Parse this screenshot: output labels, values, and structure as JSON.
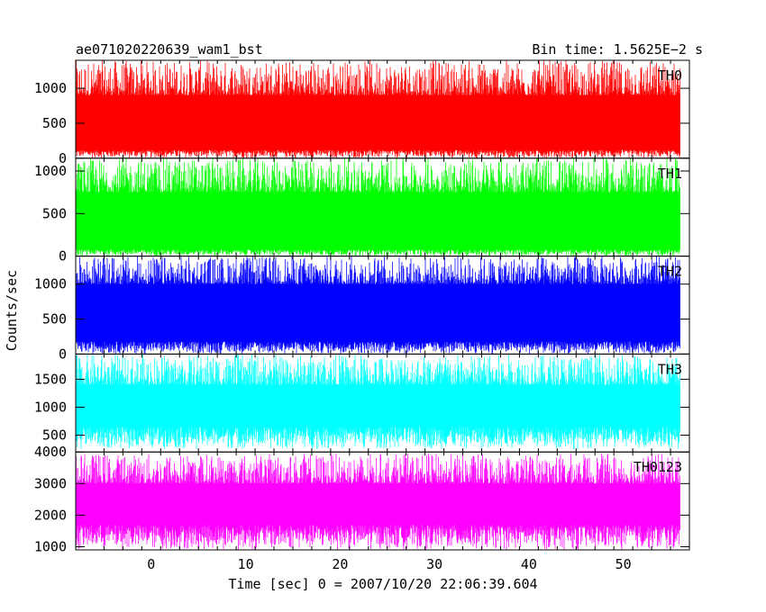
{
  "chart_data": {
    "type": "line",
    "title": "ae071020220639_wam1_bst",
    "bin_time_label": "Bin time: 1.5625E−2 s",
    "ylabel": "Counts/sec",
    "xlabel": "Time [sec] 0 = 2007/10/20 22:06:39.604",
    "xlim": [
      -8,
      57
    ],
    "x_ticks": [
      0,
      10,
      20,
      30,
      40,
      50
    ],
    "x_tick_labels": [
      "0",
      "10",
      "20",
      "30",
      "40",
      "50"
    ],
    "grid": false,
    "panels": [
      {
        "name": "TH0",
        "color": "#ff0000",
        "ylim": [
          0,
          1400
        ],
        "y_ticks": [
          0,
          500,
          1000
        ],
        "y_tick_labels": [
          "0",
          "500",
          "1000"
        ],
        "x_range": [
          -8,
          56
        ],
        "envelope_low": [
          0,
          120
        ],
        "envelope_high": [
          900,
          1400
        ],
        "typical_range": [
          120,
          900
        ]
      },
      {
        "name": "TH1",
        "color": "#00ff00",
        "ylim": [
          0,
          1150
        ],
        "y_ticks": [
          0,
          500,
          1000
        ],
        "y_tick_labels": [
          "0",
          "500",
          "1000"
        ],
        "x_range": [
          -8,
          56
        ],
        "envelope_low": [
          0,
          80
        ],
        "envelope_high": [
          750,
          1150
        ],
        "typical_range": [
          80,
          750
        ]
      },
      {
        "name": "TH2",
        "color": "#0000ff",
        "ylim": [
          0,
          1400
        ],
        "y_ticks": [
          0,
          500,
          1000
        ],
        "y_tick_labels": [
          "0",
          "500",
          "1000"
        ],
        "x_range": [
          -8,
          56
        ],
        "envelope_low": [
          0,
          180
        ],
        "envelope_high": [
          1000,
          1400
        ],
        "typical_range": [
          180,
          1000
        ]
      },
      {
        "name": "TH3",
        "color": "#00ffff",
        "ylim": [
          200,
          1950
        ],
        "y_ticks": [
          500,
          1000,
          1500
        ],
        "y_tick_labels": [
          "500",
          "1000",
          "1500"
        ],
        "x_range": [
          -8,
          56
        ],
        "envelope_low": [
          250,
          650
        ],
        "envelope_high": [
          1400,
          1950
        ],
        "typical_range": [
          650,
          1400
        ]
      },
      {
        "name": "TH0123",
        "color": "#ff00ff",
        "ylim": [
          900,
          4000
        ],
        "y_ticks": [
          1000,
          2000,
          3000,
          4000
        ],
        "y_tick_labels": [
          "1000",
          "2000",
          "3000",
          "4000"
        ],
        "x_range": [
          -8,
          56
        ],
        "envelope_low": [
          900,
          1700
        ],
        "envelope_high": [
          3000,
          3950
        ],
        "typical_range": [
          1700,
          3000
        ]
      }
    ]
  }
}
